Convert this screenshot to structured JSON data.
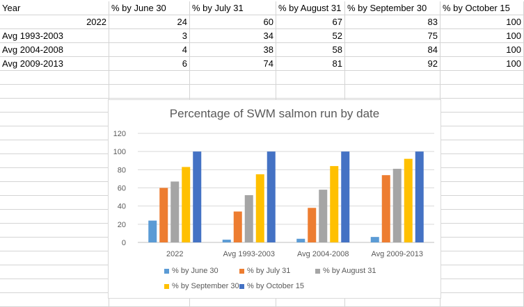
{
  "sheet": {
    "headers": [
      "Year",
      "% by June 30",
      "% by July 31",
      "% by August 31",
      "% by September 30",
      "% by October 15"
    ],
    "rows": [
      [
        "2022",
        "24",
        "60",
        "67",
        "83",
        "100"
      ],
      [
        "Avg 1993-2003",
        "3",
        "34",
        "52",
        "75",
        "100"
      ],
      [
        "Avg 2004-2008",
        "4",
        "38",
        "58",
        "84",
        "100"
      ],
      [
        "Avg 2009-2013",
        "6",
        "74",
        "81",
        "92",
        "100"
      ]
    ]
  },
  "chart_data": {
    "type": "bar",
    "title": "Percentage of SWM salmon run by date",
    "categories": [
      "2022",
      "Avg 1993-2003",
      "Avg 2004-2008",
      "Avg 2009-2013"
    ],
    "series": [
      {
        "name": "% by June 30",
        "color": "#5b9bd5",
        "values": [
          24,
          3,
          4,
          6
        ]
      },
      {
        "name": "% by July 31",
        "color": "#ed7d31",
        "values": [
          60,
          34,
          38,
          74
        ]
      },
      {
        "name": "% by August 31",
        "color": "#a5a5a5",
        "values": [
          67,
          52,
          58,
          81
        ]
      },
      {
        "name": "% by September 30",
        "color": "#ffc000",
        "values": [
          83,
          75,
          84,
          92
        ]
      },
      {
        "name": "% by October 15",
        "color": "#4472c4",
        "values": [
          100,
          100,
          100,
          100
        ]
      }
    ],
    "yticks": [
      "0",
      "20",
      "40",
      "60",
      "80",
      "100",
      "120"
    ],
    "ylim": [
      0,
      120
    ],
    "grid": true,
    "legend": "bottom"
  }
}
